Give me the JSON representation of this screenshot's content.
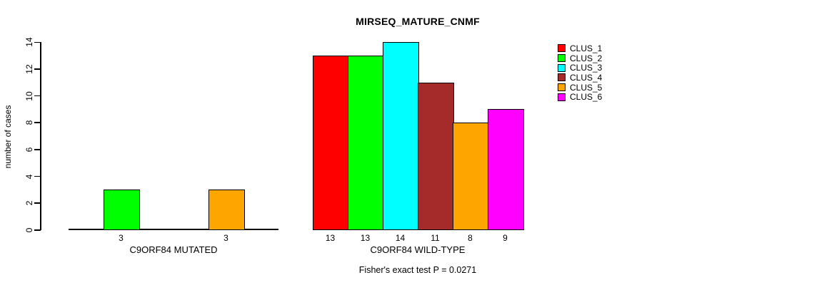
{
  "title": "MIRSEQ_MATURE_CNMF",
  "y_axis_label": "number of cases",
  "footer_note": "Fisher's exact test P = 0.0271",
  "groups": [
    {
      "label": "C9ORF84 MUTATED"
    },
    {
      "label": "C9ORF84 WILD-TYPE"
    }
  ],
  "chart_data": {
    "type": "bar",
    "title": "MIRSEQ_MATURE_CNMF",
    "xlabel": "",
    "ylabel": "number of cases",
    "categories": [
      "C9ORF84 MUTATED",
      "C9ORF84 WILD-TYPE"
    ],
    "series": [
      {
        "name": "CLUS_1",
        "color": "#FF0000",
        "values": [
          0,
          13
        ]
      },
      {
        "name": "CLUS_2",
        "color": "#00FF00",
        "values": [
          3,
          13
        ]
      },
      {
        "name": "CLUS_3",
        "color": "#00FFFF",
        "values": [
          0,
          14
        ]
      },
      {
        "name": "CLUS_4",
        "color": "#A52A2A",
        "values": [
          0,
          11
        ]
      },
      {
        "name": "CLUS_5",
        "color": "#FFA500",
        "values": [
          3,
          8
        ]
      },
      {
        "name": "CLUS_6",
        "color": "#FF00FF",
        "values": [
          0,
          9
        ]
      }
    ],
    "bar_value_labels": {
      "C9ORF84 MUTATED": [
        "",
        "3",
        "",
        "",
        "3",
        ""
      ],
      "C9ORF84 WILD-TYPE": [
        "13",
        "13",
        "14",
        "11",
        "8",
        "9"
      ]
    },
    "y_ticks": [
      0,
      2,
      4,
      6,
      8,
      10,
      12,
      14
    ],
    "ylim": [
      0,
      14
    ],
    "grid": false,
    "legend_position": "right",
    "legend_entries": [
      "CLUS_1",
      "CLUS_2",
      "CLUS_3",
      "CLUS_4",
      "CLUS_5",
      "CLUS_6"
    ],
    "annotation": "Fisher's exact test P = 0.0271",
    "bar_border_color": "#000000",
    "background_color": "#FFFFFF"
  }
}
